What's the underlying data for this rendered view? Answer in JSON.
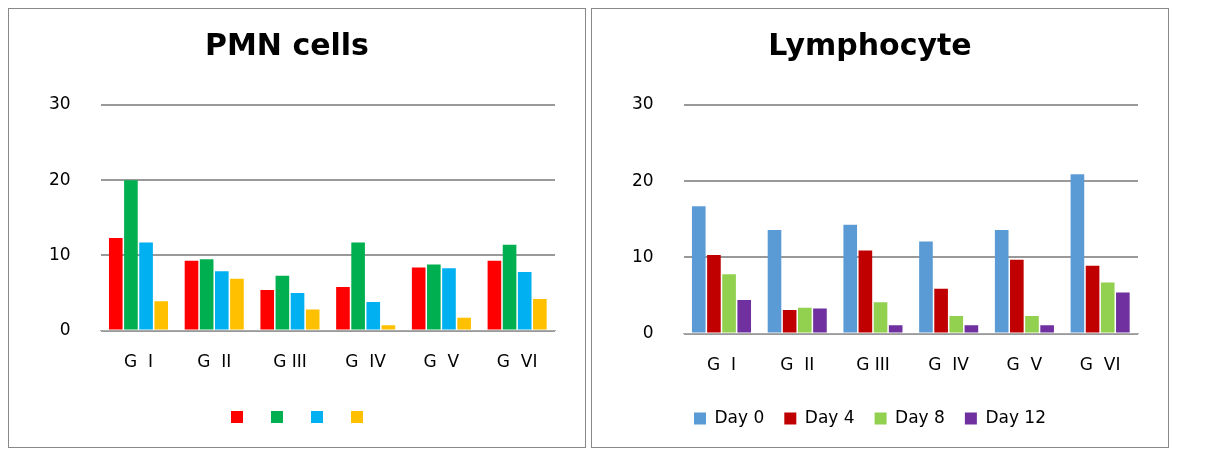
{
  "chart_data": [
    {
      "type": "bar",
      "title": "PMN cells",
      "categories": [
        "G  I",
        "G  II",
        "G III",
        "G  IV",
        "G  V",
        "G  VI"
      ],
      "ylim": [
        0,
        30
      ],
      "yticks": [
        0,
        10,
        20,
        30
      ],
      "grid": "y",
      "series": [
        {
          "color": "#ff0000",
          "values": [
            12.3,
            9.3,
            5.4,
            5.8,
            8.4,
            9.3
          ]
        },
        {
          "color": "#00b050",
          "values": [
            20,
            9.5,
            7.3,
            11.7,
            8.8,
            11.4
          ]
        },
        {
          "color": "#00b0f0",
          "values": [
            11.7,
            7.9,
            5,
            3.8,
            8.3,
            7.8
          ]
        },
        {
          "color": "#ffc000",
          "values": [
            3.9,
            6.9,
            2.8,
            0.7,
            1.7,
            4.2
          ]
        }
      ]
    },
    {
      "type": "bar",
      "title": "Lymphocyte",
      "categories": [
        "G  I",
        "G  II",
        "G III",
        "G  IV",
        "G  V",
        "G  VI"
      ],
      "ylim": [
        0,
        30
      ],
      "yticks": [
        0,
        10,
        20,
        30
      ],
      "grid": "y",
      "legend": "bottom",
      "series": [
        {
          "name": "Day 0",
          "color": "#5b9bd5",
          "values": [
            16.7,
            13.6,
            14.3,
            12.1,
            13.6,
            20.9
          ]
        },
        {
          "name": "Day 4",
          "color": "#c00000",
          "values": [
            10.3,
            3.1,
            10.9,
            5.9,
            9.7,
            8.9
          ]
        },
        {
          "name": "Day 8",
          "color": "#92d050",
          "values": [
            7.8,
            3.4,
            4.1,
            2.3,
            2.3,
            6.7
          ]
        },
        {
          "name": "Day 12",
          "color": "#7030a0",
          "values": [
            4.4,
            3.3,
            1.1,
            1.1,
            1.1,
            5.4
          ]
        }
      ]
    }
  ]
}
